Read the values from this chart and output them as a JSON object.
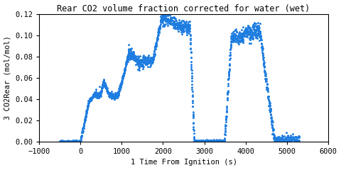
{
  "title": "Rear CO2 volume fraction corrected for water (wet)",
  "xlabel": "1 Time From Ignition (s)",
  "ylabel": "3 CO2Rear (mol/mol)",
  "xlim": [
    -1000,
    6000
  ],
  "ylim": [
    0,
    0.12
  ],
  "xticks": [
    -1000,
    0,
    1000,
    2000,
    3000,
    4000,
    5000,
    6000
  ],
  "yticks": [
    0,
    0.02,
    0.04,
    0.06,
    0.08,
    0.1,
    0.12
  ],
  "line_color": "#1e7de0",
  "marker": "*",
  "markersize": 2.0,
  "title_fontsize": 8.5,
  "label_fontsize": 7.5,
  "tick_fontsize": 7.5
}
